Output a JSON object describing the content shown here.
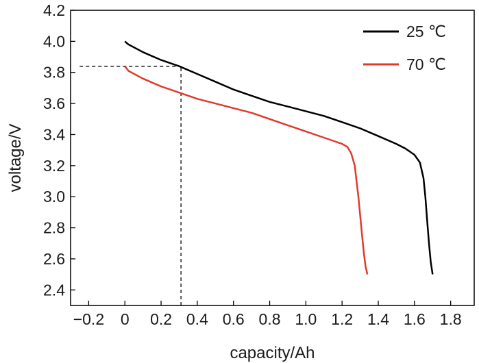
{
  "chart_data": {
    "type": "line",
    "xlabel": "capacity/Ah",
    "ylabel": "voltage/V",
    "xlim": [
      -0.3,
      1.93
    ],
    "ylim": [
      2.3,
      4.2
    ],
    "x_ticks": [
      -0.2,
      0,
      0.2,
      0.4,
      0.6,
      0.8,
      1.0,
      1.2,
      1.4,
      1.6,
      1.8
    ],
    "x_tick_labels": [
      "−0.2",
      "0",
      "0.2",
      "0.4",
      "0.6",
      "0.8",
      "1.0",
      "1.2",
      "1.4",
      "1.6",
      "1.8"
    ],
    "y_ticks": [
      2.4,
      2.6,
      2.8,
      3.0,
      3.2,
      3.4,
      3.6,
      3.8,
      4.0,
      4.2
    ],
    "y_tick_labels": [
      "2.4",
      "2.6",
      "2.8",
      "3.0",
      "3.2",
      "3.4",
      "3.6",
      "3.8",
      "4.0",
      "4.2"
    ],
    "grid": false,
    "legend_position": "top-right",
    "series": [
      {
        "name": "25 ℃",
        "color": "#000000",
        "x": [
          0,
          0.02,
          0.1,
          0.2,
          0.3,
          0.4,
          0.5,
          0.6,
          0.7,
          0.8,
          0.9,
          1.0,
          1.1,
          1.2,
          1.3,
          1.4,
          1.5,
          1.55,
          1.6,
          1.63,
          1.65,
          1.66,
          1.67,
          1.68,
          1.69,
          1.7
        ],
        "y": [
          4.0,
          3.98,
          3.93,
          3.88,
          3.84,
          3.79,
          3.74,
          3.69,
          3.65,
          3.61,
          3.58,
          3.55,
          3.52,
          3.48,
          3.44,
          3.39,
          3.34,
          3.31,
          3.27,
          3.22,
          3.12,
          3.0,
          2.85,
          2.7,
          2.58,
          2.5
        ]
      },
      {
        "name": "70 ℃",
        "color": "#e03a2b",
        "x": [
          0,
          0.02,
          0.1,
          0.2,
          0.3,
          0.4,
          0.5,
          0.6,
          0.7,
          0.8,
          0.9,
          1.0,
          1.1,
          1.15,
          1.2,
          1.23,
          1.25,
          1.27,
          1.28,
          1.29,
          1.3,
          1.31,
          1.32,
          1.33,
          1.34
        ],
        "y": [
          3.84,
          3.81,
          3.76,
          3.71,
          3.67,
          3.63,
          3.6,
          3.57,
          3.54,
          3.5,
          3.46,
          3.42,
          3.38,
          3.36,
          3.34,
          3.32,
          3.28,
          3.2,
          3.1,
          3.0,
          2.88,
          2.76,
          2.64,
          2.55,
          2.5
        ]
      }
    ],
    "reference_lines": [
      {
        "style": "dashed",
        "x": [
          -0.25,
          0.31
        ],
        "y": [
          3.84,
          3.84
        ]
      },
      {
        "style": "dashed",
        "x": [
          0.31,
          0.31
        ],
        "y": [
          2.3,
          3.84
        ]
      }
    ]
  }
}
